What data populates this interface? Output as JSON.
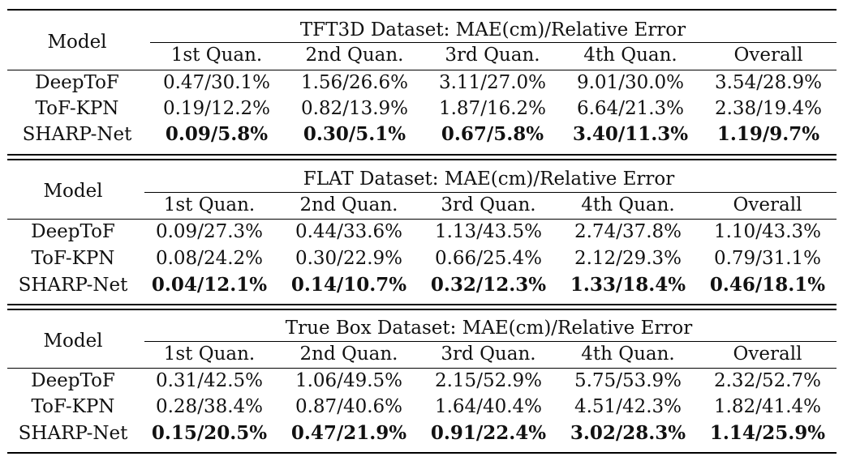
{
  "tables": [
    {
      "title": "TFT3D Dataset: MAE(cm)/Relative Error",
      "model_header": "Model",
      "columns": [
        "1st Quan.",
        "2nd Quan.",
        "3rd Quan.",
        "4th Quan.",
        "Overall"
      ],
      "rows": [
        {
          "model": "DeepToF",
          "values": [
            "0.47/30.1%",
            "1.56/26.6%",
            "3.11/27.0%",
            "9.01/30.0%",
            "3.54/28.9%"
          ],
          "bold": false
        },
        {
          "model": "ToF-KPN",
          "values": [
            "0.19/12.2%",
            "0.82/13.9%",
            "1.87/16.2%",
            "6.64/21.3%",
            "2.38/19.4%"
          ],
          "bold": false
        },
        {
          "model": "SHARP-Net",
          "values": [
            "0.09/5.8%",
            "0.30/5.1%",
            "0.67/5.8%",
            "3.40/11.3%",
            "1.19/9.7%"
          ],
          "bold": true
        }
      ]
    },
    {
      "title": "FLAT Dataset: MAE(cm)/Relative Error",
      "model_header": "Model",
      "columns": [
        "1st Quan.",
        "2nd Quan.",
        "3rd Quan.",
        "4th Quan.",
        "Overall"
      ],
      "rows": [
        {
          "model": "DeepToF",
          "values": [
            "0.09/27.3%",
            "0.44/33.6%",
            "1.13/43.5%",
            "2.74/37.8%",
            "1.10/43.3%"
          ],
          "bold": false
        },
        {
          "model": "ToF-KPN",
          "values": [
            "0.08/24.2%",
            "0.30/22.9%",
            "0.66/25.4%",
            "2.12/29.3%",
            "0.79/31.1%"
          ],
          "bold": false
        },
        {
          "model": "SHARP-Net",
          "values": [
            "0.04/12.1%",
            "0.14/10.7%",
            "0.32/12.3%",
            "1.33/18.4%",
            "0.46/18.1%"
          ],
          "bold": true
        }
      ]
    },
    {
      "title": "True Box Dataset: MAE(cm)/Relative Error",
      "model_header": "Model",
      "columns": [
        "1st Quan.",
        "2nd Quan.",
        "3rd Quan.",
        "4th Quan.",
        "Overall"
      ],
      "rows": [
        {
          "model": "DeepToF",
          "values": [
            "0.31/42.5%",
            "1.06/49.5%",
            "2.15/52.9%",
            "5.75/53.9%",
            "2.32/52.7%"
          ],
          "bold": false
        },
        {
          "model": "ToF-KPN",
          "values": [
            "0.28/38.4%",
            "0.87/40.6%",
            "1.64/40.4%",
            "4.51/42.3%",
            "1.82/41.4%"
          ],
          "bold": false
        },
        {
          "model": "SHARP-Net",
          "values": [
            "0.15/20.5%",
            "0.47/21.9%",
            "0.91/22.4%",
            "3.02/28.3%",
            "1.14/25.9%"
          ],
          "bold": true
        }
      ]
    }
  ]
}
